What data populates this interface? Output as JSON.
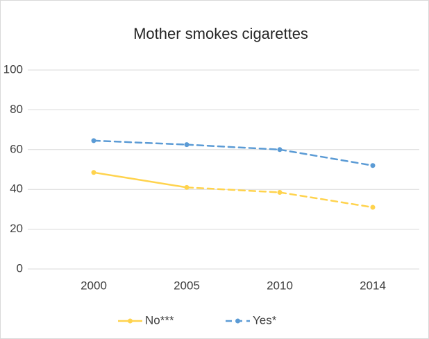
{
  "chart_data": {
    "type": "line",
    "title": "Mother smokes cigarettes",
    "categories": [
      "2000",
      "2005",
      "2010",
      "2014"
    ],
    "series": [
      {
        "name": "No***",
        "color": "#ffd34d",
        "values": [
          48.5,
          41,
          38.5,
          31
        ],
        "line_style": [
          "solid",
          "dashed",
          "dashed"
        ]
      },
      {
        "name": "Yes*",
        "color": "#5b9bd5",
        "values": [
          64.5,
          62.5,
          60,
          52
        ],
        "line_style": [
          "dashed",
          "dashed",
          "dashed"
        ]
      }
    ],
    "ylim": [
      0,
      100
    ],
    "yticks": [
      0,
      20,
      40,
      60,
      80,
      100
    ],
    "grid": true,
    "legend": "bottom"
  }
}
